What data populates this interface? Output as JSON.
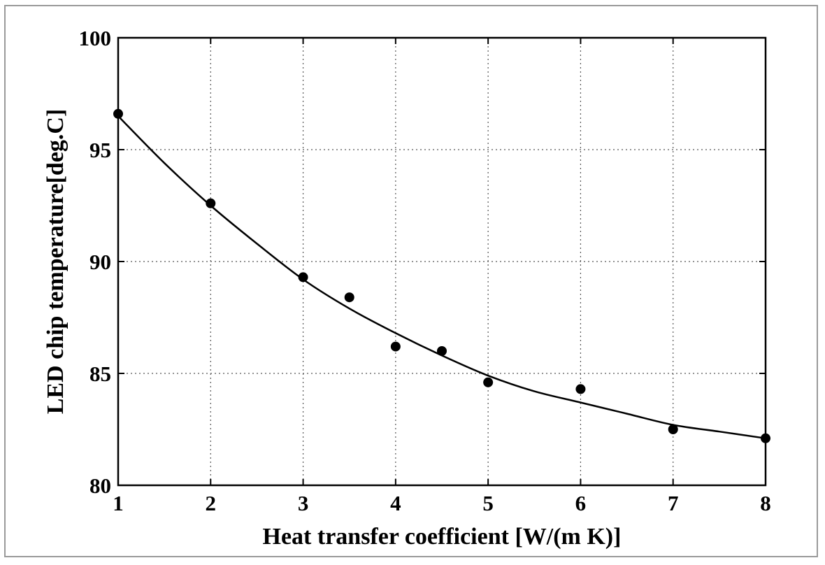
{
  "chart_data": {
    "type": "scatter",
    "title": "",
    "xlabel": "Heat transfer coefficient [W/(m K)]",
    "ylabel": "LED chip temperature[deg.C]",
    "xlim": [
      1,
      8
    ],
    "ylim": [
      80,
      100
    ],
    "xticks": [
      1,
      2,
      3,
      4,
      5,
      6,
      7,
      8
    ],
    "yticks": [
      80,
      85,
      90,
      95,
      100
    ],
    "grid": true,
    "series": [
      {
        "kind": "points",
        "x": [
          1,
          2,
          3,
          3.5,
          4,
          4.5,
          5,
          6,
          7,
          8
        ],
        "y": [
          96.6,
          92.6,
          89.3,
          88.4,
          86.2,
          86.0,
          84.6,
          84.3,
          82.5,
          82.1
        ]
      },
      {
        "kind": "fit-curve",
        "x": [
          1,
          1.5,
          2,
          2.5,
          3,
          3.5,
          4,
          4.5,
          5,
          5.5,
          6,
          6.5,
          7,
          7.5,
          8
        ],
        "y": [
          96.5,
          94.4,
          92.5,
          90.8,
          89.2,
          87.9,
          86.8,
          85.8,
          84.9,
          84.2,
          83.7,
          83.2,
          82.7,
          82.4,
          82.1
        ]
      }
    ]
  }
}
